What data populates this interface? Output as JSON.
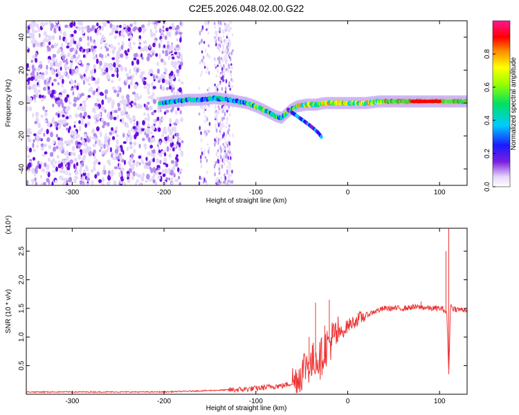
{
  "title": "C2E5.2026.048.02.00.G22",
  "chart_data": [
    {
      "type": "heatmap",
      "xlabel": "Height of straight line (km)",
      "ylabel": "Frequency (Hz)",
      "xlim": [
        -350,
        130
      ],
      "ylim": [
        -50,
        50
      ],
      "x_ticks": [
        -300,
        -200,
        -100,
        0,
        100
      ],
      "y_ticks": [
        -40,
        -20,
        0,
        20,
        40
      ],
      "grid": false,
      "colorbar": {
        "label": "Normalized spectral amplitude",
        "range": [
          0,
          1
        ],
        "ticks": [
          0.0,
          0.2,
          0.4,
          0.6,
          0.8
        ]
      },
      "ridge": {
        "x": [
          -205,
          -190,
          -175,
          -160,
          -145,
          -130,
          -120,
          -110,
          -100,
          -92,
          -85,
          -78,
          -72,
          -68,
          -62,
          -55,
          -45,
          -35,
          -25,
          -15,
          -5,
          0,
          10,
          20,
          35,
          50,
          65,
          80,
          95,
          105,
          115,
          125,
          130
        ],
        "y": [
          0,
          1,
          2,
          2,
          3,
          2,
          1,
          0,
          -2,
          -4,
          -6,
          -8,
          -9,
          -7,
          -4,
          -2,
          -1,
          -1,
          0,
          0,
          0,
          0,
          0,
          0,
          1,
          1,
          1,
          1,
          1,
          1,
          1,
          1,
          1
        ]
      },
      "branch": {
        "x": [
          -65,
          -55,
          -45,
          -38,
          -32,
          -28
        ],
        "y": [
          -4,
          -8,
          -12,
          -15,
          -18,
          -21
        ]
      }
    },
    {
      "type": "line",
      "xlabel": "Height of straight line (km)",
      "ylabel": "SNR (10 * v/v)",
      "y_multiplier": "(x10⁴)",
      "xlim": [
        -350,
        130
      ],
      "ylim": [
        0,
        2.9
      ],
      "x_ticks": [
        -300,
        -200,
        -100,
        0,
        100
      ],
      "y_ticks": [
        0.5,
        1.0,
        1.5,
        2.0,
        2.5
      ],
      "y_tick_labels": [
        "0.5",
        "1.0",
        "1.5",
        "2.0",
        "2.5"
      ],
      "grid": false,
      "series": [
        {
          "color": "#ee3333",
          "x": [
            -350,
            -300,
            -250,
            -200,
            -180,
            -160,
            -140,
            -120,
            -100,
            -90,
            -80,
            -70,
            -60,
            -55,
            -50,
            -45,
            -40,
            -35,
            -30,
            -25,
            -20,
            -15,
            -10,
            -5,
            0,
            5,
            10,
            20,
            30,
            40,
            50,
            60,
            70,
            80,
            90,
            100,
            105,
            108,
            110,
            112,
            115,
            120,
            130
          ],
          "y": [
            0.04,
            0.04,
            0.04,
            0.04,
            0.05,
            0.06,
            0.07,
            0.08,
            0.1,
            0.12,
            0.14,
            0.15,
            0.2,
            0.25,
            0.4,
            0.55,
            0.5,
            0.65,
            0.6,
            0.8,
            0.9,
            1.0,
            1.05,
            1.1,
            1.2,
            1.25,
            1.3,
            1.38,
            1.45,
            1.5,
            1.5,
            1.5,
            1.52,
            1.52,
            1.5,
            1.5,
            1.48,
            1.4,
            0.35,
            1.55,
            1.5,
            1.48,
            1.48
          ]
        }
      ],
      "spikes": [
        {
          "x": -42,
          "y": 1.0
        },
        {
          "x": -35,
          "y": 1.6
        },
        {
          "x": -25,
          "y": 1.2
        },
        {
          "x": -20,
          "y": 1.65
        },
        {
          "x": -15,
          "y": 1.05
        },
        {
          "x": 110,
          "y": 2.9
        },
        {
          "x": 107,
          "y": 2.5
        },
        {
          "x": 80,
          "y": 1.62
        }
      ]
    }
  ]
}
